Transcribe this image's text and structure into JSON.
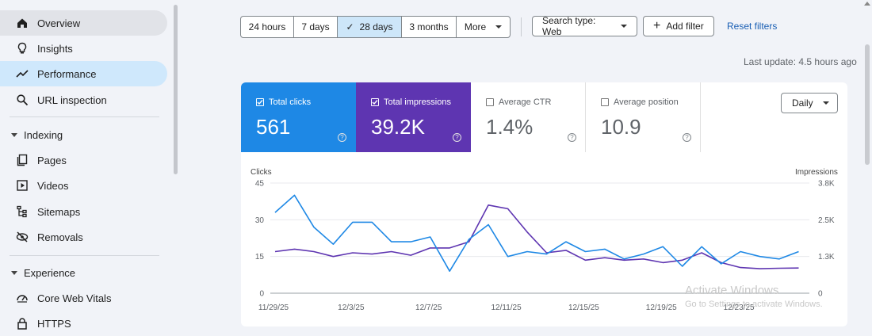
{
  "sidebar": {
    "items_top": [
      {
        "label": "Overview",
        "icon": "home-icon"
      },
      {
        "label": "Insights",
        "icon": "lightbulb-icon"
      },
      {
        "label": "Performance",
        "icon": "trending-icon"
      },
      {
        "label": "URL inspection",
        "icon": "search-icon"
      }
    ],
    "indexing_label": "Indexing",
    "indexing_items": [
      {
        "label": "Pages",
        "icon": "pages-icon"
      },
      {
        "label": "Videos",
        "icon": "video-icon"
      },
      {
        "label": "Sitemaps",
        "icon": "sitemap-icon"
      },
      {
        "label": "Removals",
        "icon": "removals-icon"
      }
    ],
    "experience_label": "Experience",
    "experience_items": [
      {
        "label": "Core Web Vitals",
        "icon": "speedometer-icon"
      },
      {
        "label": "HTTPS",
        "icon": "lock-icon"
      }
    ]
  },
  "toolbar": {
    "ranges": [
      "24 hours",
      "7 days",
      "28 days",
      "3 months",
      "More"
    ],
    "selected_range": "28 days",
    "search_type": "Search type: Web",
    "add_filter": "Add filter",
    "reset_filters": "Reset filters"
  },
  "last_update": "Last update: 4.5 hours ago",
  "metrics": [
    {
      "label": "Total clicks",
      "value": "561",
      "checked": true,
      "color": "#1e88e5"
    },
    {
      "label": "Total impressions",
      "value": "39.2K",
      "checked": true,
      "color": "#5e35b1"
    },
    {
      "label": "Average CTR",
      "value": "1.4%",
      "checked": false,
      "color": "#ffffff"
    },
    {
      "label": "Average position",
      "value": "10.9",
      "checked": false,
      "color": "#ffffff"
    }
  ],
  "granularity": "Daily",
  "watermark": {
    "title": "Activate Windows",
    "subtitle": "Go to Settings to activate Windows."
  },
  "chart_data": {
    "type": "line",
    "left_axis_label": "Clicks",
    "right_axis_label": "Impressions",
    "left_ticks": [
      "45",
      "30",
      "15",
      "0"
    ],
    "right_ticks": [
      "3.8K",
      "2.5K",
      "1.3K",
      "0"
    ],
    "ylim_left": [
      0,
      45
    ],
    "ylim_right": [
      0,
      3800
    ],
    "x_tick_labels": [
      "11/29/25",
      "12/3/25",
      "12/7/25",
      "12/11/25",
      "12/15/25",
      "12/19/25",
      "12/23/25"
    ],
    "x": [
      "11/29/25",
      "11/30/25",
      "12/1/25",
      "12/2/25",
      "12/3/25",
      "12/4/25",
      "12/5/25",
      "12/6/25",
      "12/7/25",
      "12/8/25",
      "12/9/25",
      "12/10/25",
      "12/11/25",
      "12/12/25",
      "12/13/25",
      "12/14/25",
      "12/15/25",
      "12/16/25",
      "12/17/25",
      "12/18/25",
      "12/19/25",
      "12/20/25",
      "12/21/25",
      "12/22/25",
      "12/23/25",
      "12/24/25",
      "12/25/25",
      "12/26/25"
    ],
    "series": [
      {
        "name": "Clicks",
        "axis": "left",
        "color": "#1e88e5",
        "values": [
          33,
          40,
          27,
          20,
          29,
          29,
          21,
          21,
          23,
          9,
          22,
          28,
          15,
          17,
          16,
          21,
          17,
          18,
          14,
          16,
          19,
          11,
          19,
          12,
          17,
          15,
          14,
          17
        ]
      },
      {
        "name": "Impressions",
        "axis": "left",
        "color": "#5e35b1",
        "values": [
          17,
          18,
          17,
          15,
          16.5,
          16,
          17,
          15.5,
          18.5,
          18.5,
          21,
          36,
          34.5,
          25,
          16.5,
          17.5,
          13.5,
          14.5,
          13.5,
          14,
          12.5,
          13.5,
          16.5,
          12.5,
          10.5,
          10,
          10.2,
          10.3
        ]
      }
    ]
  }
}
